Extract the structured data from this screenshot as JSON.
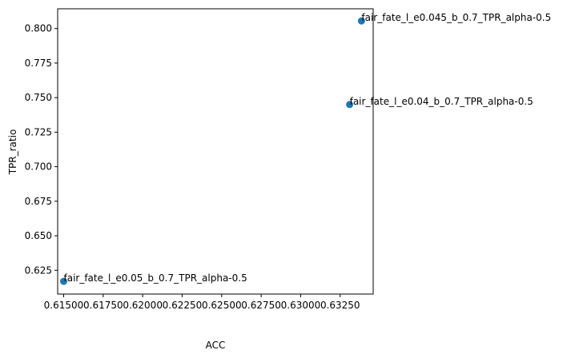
{
  "chart_data": {
    "type": "scatter",
    "xlabel": "ACC",
    "ylabel": "TPR_ratio",
    "xlim": [
      0.61462,
      0.63459
    ],
    "ylim": [
      0.6078,
      0.8143
    ],
    "grid": false,
    "marker_color": "#1f77b4",
    "x_ticks": [
      0.615,
      0.6175,
      0.62,
      0.6225,
      0.625,
      0.6275,
      0.63,
      0.6325
    ],
    "x_tick_labels": [
      "0.61500",
      "0.61750",
      "0.62000",
      "0.62250",
      "0.62500",
      "0.62750",
      "0.63000",
      "0.63250"
    ],
    "y_ticks": [
      0.625,
      0.65,
      0.675,
      0.7,
      0.725,
      0.75,
      0.775,
      0.8
    ],
    "y_tick_labels": [
      "0.625",
      "0.650",
      "0.675",
      "0.700",
      "0.725",
      "0.750",
      "0.775",
      "0.800"
    ],
    "points": [
      {
        "x": 0.63385,
        "y": 0.8055,
        "label": "fair_fate_l_e0.045_b_0.7_TPR_alpha-0.5"
      },
      {
        "x": 0.6331,
        "y": 0.745,
        "label": "fair_fate_l_e0.04_b_0.7_TPR_alpha-0.5"
      },
      {
        "x": 0.615,
        "y": 0.617,
        "label": "fair_fate_l_e0.05_b_0.7_TPR_alpha-0.5"
      }
    ]
  }
}
